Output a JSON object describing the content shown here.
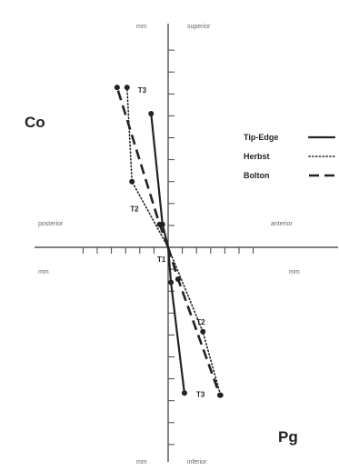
{
  "chart_data": {
    "type": "line",
    "axis_labels": {
      "top_mm": "mm",
      "superior": "superior",
      "bottom_mm": "mm",
      "inferior": "inferior",
      "left_mm": "mm",
      "right_mm": "mm",
      "posterior": "posterior",
      "anterior": "anterior"
    },
    "end_labels": {
      "condylion": "Co",
      "pogonion": "Pg"
    },
    "timepoints": [
      "T1",
      "T2",
      "T3"
    ],
    "xlim": [
      -6,
      6
    ],
    "ylim": [
      -9,
      9
    ],
    "series": [
      {
        "name": "Tip-Edge",
        "style": "solid",
        "color": "#222222",
        "condylion": [
          {
            "t": "T1",
            "x": 0,
            "y": 0
          },
          {
            "t": "T2",
            "x": -0.4,
            "y": 1.05
          },
          {
            "t": "T3",
            "x": -1.2,
            "y": 6.1
          }
        ],
        "pogonion": [
          {
            "t": "T1",
            "x": 0,
            "y": 0
          },
          {
            "t": "T2",
            "x": 0.2,
            "y": -1.6
          },
          {
            "t": "T3",
            "x": 1.15,
            "y": -6.65
          }
        ]
      },
      {
        "name": "Herbst",
        "style": "dotted",
        "color": "#222222",
        "condylion": [
          {
            "t": "T1",
            "x": 0,
            "y": 0
          },
          {
            "t": "T2",
            "x": -2.55,
            "y": 3.0
          },
          {
            "t": "T3",
            "x": -2.9,
            "y": 7.3
          }
        ],
        "pogonion": [
          {
            "t": "T1",
            "x": 0,
            "y": 0
          },
          {
            "t": "T2",
            "x": 2.45,
            "y": -3.85
          },
          {
            "t": "T3",
            "x": 3.7,
            "y": -6.75
          }
        ]
      },
      {
        "name": "Bolton",
        "style": "dashed",
        "color": "#222222",
        "condylion": [
          {
            "t": "T1",
            "x": 0,
            "y": 0
          },
          {
            "t": "T2",
            "x": -0.6,
            "y": 1.05
          },
          {
            "t": "T3",
            "x": -3.6,
            "y": 7.3
          }
        ],
        "pogonion": [
          {
            "t": "T1",
            "x": 0,
            "y": 0
          },
          {
            "t": "T2",
            "x": 0.7,
            "y": -1.45
          },
          {
            "t": "T3",
            "x": 3.65,
            "y": -6.75
          }
        ]
      }
    ],
    "point_labels": [
      {
        "text": "T3",
        "series": "Herbst",
        "side": "condylion",
        "t": "T3"
      },
      {
        "text": "T2",
        "series": "Herbst",
        "side": "condylion",
        "t": "T2"
      },
      {
        "text": "T1",
        "series": "Tip-Edge",
        "side": "condylion",
        "t": "T1"
      },
      {
        "text": "T2",
        "series": "Herbst",
        "side": "pogonion",
        "t": "T2"
      },
      {
        "text": "T3",
        "series": "Tip-Edge",
        "side": "pogonion",
        "t": "T3"
      }
    ],
    "legend": {
      "placement": "right",
      "entries": [
        "Tip-Edge",
        "Herbst",
        "Bolton"
      ]
    },
    "grid": false
  }
}
